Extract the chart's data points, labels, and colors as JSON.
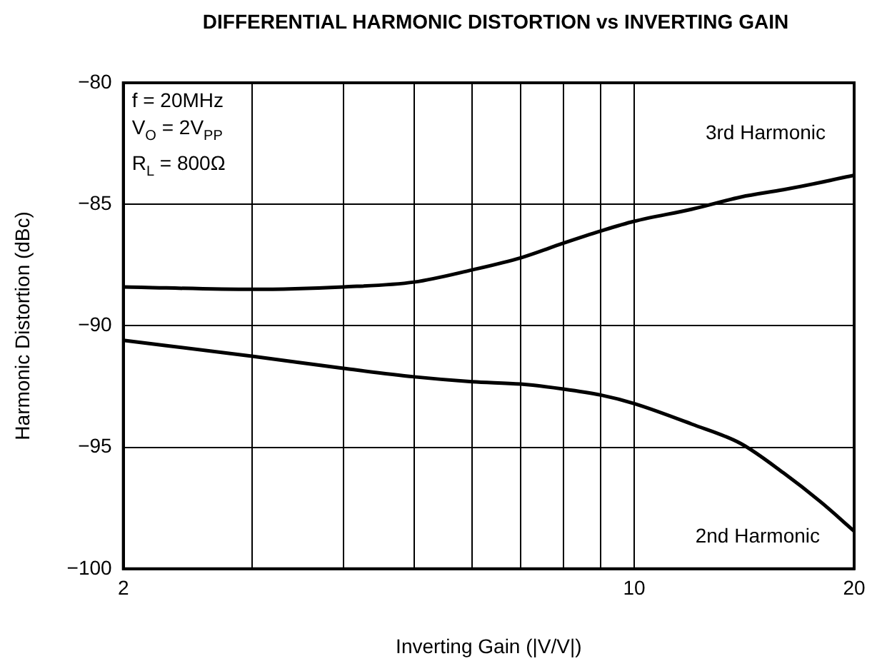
{
  "chart_data": {
    "type": "line",
    "title": "DIFFERENTIAL HARMONIC DISTORTION vs INVERTING GAIN",
    "xlabel": "Inverting Gain (|V/V|)",
    "ylabel": "Harmonic Distortion (dBc)",
    "log": "x",
    "grid": true,
    "legend": false,
    "marker": "none",
    "line_style": "solid",
    "x": [
      2,
      3,
      4,
      5,
      6,
      7,
      8,
      9,
      10,
      12,
      14,
      16,
      18,
      20
    ],
    "xlim": [
      2,
      20
    ],
    "xticks": [
      2,
      {
        "value": 3,
        "label": null
      },
      {
        "value": 4,
        "label": null
      },
      {
        "value": 5,
        "label": null
      },
      {
        "value": 6,
        "label": null
      },
      {
        "value": 7,
        "label": null
      },
      {
        "value": 8,
        "label": null
      },
      {
        "value": 9,
        "label": null
      },
      10,
      20
    ],
    "ylim": [
      -100,
      -80
    ],
    "yticks": [
      {
        "value": -100,
        "label": "−100"
      },
      {
        "value": -95,
        "label": "−95"
      },
      {
        "value": -90,
        "label": "−90"
      },
      {
        "value": -85,
        "label": "−85"
      },
      {
        "value": -80,
        "label": "−80"
      }
    ],
    "annotations": [
      "f = 20MHz",
      "V$_{O}$ = 2V$_{PP}$",
      "R$_{L}$ = 800Ω"
    ],
    "series": [
      {
        "name": "3rd Harmonic",
        "color": "#000000",
        "values": [
          -88.4,
          -88.5,
          -88.4,
          -88.2,
          -87.7,
          -87.2,
          -86.6,
          -86.1,
          -85.7,
          -85.2,
          -84.7,
          -84.4,
          -84.1,
          -83.8
        ]
      },
      {
        "name": "2nd Harmonic",
        "color": "#000000",
        "values": [
          -90.6,
          -91.25,
          -91.75,
          -92.1,
          -92.3,
          -92.4,
          -92.6,
          -92.85,
          -93.2,
          -94.05,
          -94.85,
          -96.05,
          -97.25,
          -98.45
        ]
      }
    ]
  }
}
